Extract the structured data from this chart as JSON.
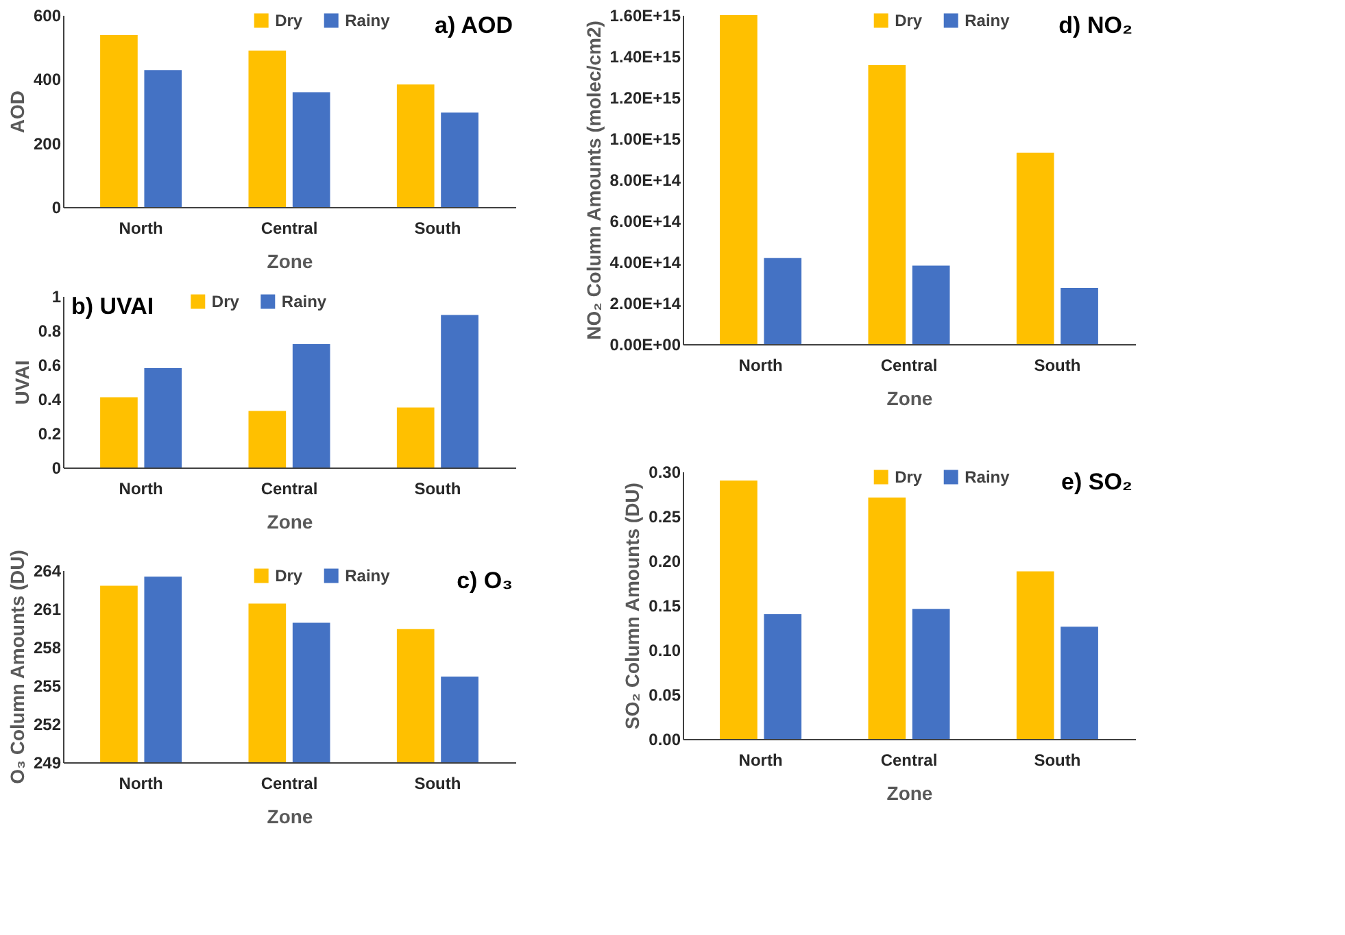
{
  "chart_data": [
    {
      "type": "bar",
      "title": "a) AOD",
      "xlabel": "Zone",
      "ylabel": "AOD",
      "categories": [
        "North",
        "Central",
        "South"
      ],
      "series": [
        {
          "name": "Dry",
          "color": "#ffc000",
          "values": [
            538,
            489,
            383
          ]
        },
        {
          "name": "Rainy",
          "color": "#4472c4",
          "values": [
            428,
            359,
            295
          ]
        }
      ],
      "ylim": [
        0,
        600
      ],
      "yticks": [
        0,
        200,
        400,
        600
      ],
      "legend": "top right",
      "grid": false
    },
    {
      "type": "bar",
      "title": "b) UVAI",
      "xlabel": "Zone",
      "ylabel": "UVAI",
      "categories": [
        "North",
        "Central",
        "South"
      ],
      "series": [
        {
          "name": "Dry",
          "color": "#ffc000",
          "values": [
            0.41,
            0.33,
            0.35
          ]
        },
        {
          "name": "Rainy",
          "color": "#4472c4",
          "values": [
            0.58,
            0.72,
            0.89
          ]
        }
      ],
      "ylim": [
        0,
        1
      ],
      "yticks": [
        0,
        0.2,
        0.4,
        0.6,
        0.8,
        1
      ],
      "legend": "top",
      "grid": false
    },
    {
      "type": "bar",
      "title": "c) O₃",
      "xlabel": "Zone",
      "ylabel": "O₃ Column Amounts (DU)",
      "categories": [
        "North",
        "Central",
        "South"
      ],
      "series": [
        {
          "name": "Dry",
          "color": "#ffc000",
          "values": [
            262.8,
            261.4,
            259.4
          ]
        },
        {
          "name": "Rainy",
          "color": "#4472c4",
          "values": [
            263.5,
            259.9,
            255.7
          ]
        }
      ],
      "ylim": [
        249,
        264
      ],
      "yticks": [
        249,
        252,
        255,
        258,
        261,
        264
      ],
      "legend": "top right",
      "grid": false
    },
    {
      "type": "bar",
      "title": "d) NO₂",
      "xlabel": "Zone",
      "ylabel": "NO₂ Column Amounts (molec/cm2)",
      "categories": [
        "North",
        "Central",
        "South"
      ],
      "series": [
        {
          "name": "Dry",
          "color": "#ffc000",
          "values": [
            1600000000000000.0,
            1357000000000000.0,
            931000000000000.0
          ]
        },
        {
          "name": "Rainy",
          "color": "#4472c4",
          "values": [
            419000000000000.0,
            382000000000000.0,
            273000000000000.0
          ]
        }
      ],
      "ylim": [
        0,
        1600000000000000.0
      ],
      "yticks": [
        {
          "value": 0,
          "label": "0.00E+00"
        },
        {
          "value": 200000000000000.0,
          "label": "2.00E+14"
        },
        {
          "value": 400000000000000.0,
          "label": "4.00E+14"
        },
        {
          "value": 600000000000000.0,
          "label": "6.00E+14"
        },
        {
          "value": 800000000000000.0,
          "label": "8.00E+14"
        },
        {
          "value": 1000000000000000.0,
          "label": "1.00E+15"
        },
        {
          "value": 1200000000000000.0,
          "label": "1.20E+15"
        },
        {
          "value": 1400000000000000.0,
          "label": "1.40E+15"
        },
        {
          "value": 1600000000000000.0,
          "label": "1.60E+15"
        }
      ],
      "legend": "top right",
      "grid": false
    },
    {
      "type": "bar",
      "title": "e) SO₂",
      "xlabel": "Zone",
      "ylabel": "SO₂ Column Amounts (DU)",
      "categories": [
        "North",
        "Central",
        "South"
      ],
      "series": [
        {
          "name": "Dry",
          "color": "#ffc000",
          "values": [
            0.29,
            0.271,
            0.188
          ]
        },
        {
          "name": "Rainy",
          "color": "#4472c4",
          "values": [
            0.14,
            0.146,
            0.126
          ]
        }
      ],
      "ylim": [
        0,
        0.3
      ],
      "yticks": [
        {
          "value": 0,
          "label": "0.00"
        },
        {
          "value": 0.05,
          "label": "0.05"
        },
        {
          "value": 0.1,
          "label": "0.10"
        },
        {
          "value": 0.15,
          "label": "0.15"
        },
        {
          "value": 0.2,
          "label": "0.20"
        },
        {
          "value": 0.25,
          "label": "0.25"
        },
        {
          "value": 0.3,
          "label": "0.30"
        }
      ],
      "legend": "top right",
      "grid": false
    }
  ]
}
